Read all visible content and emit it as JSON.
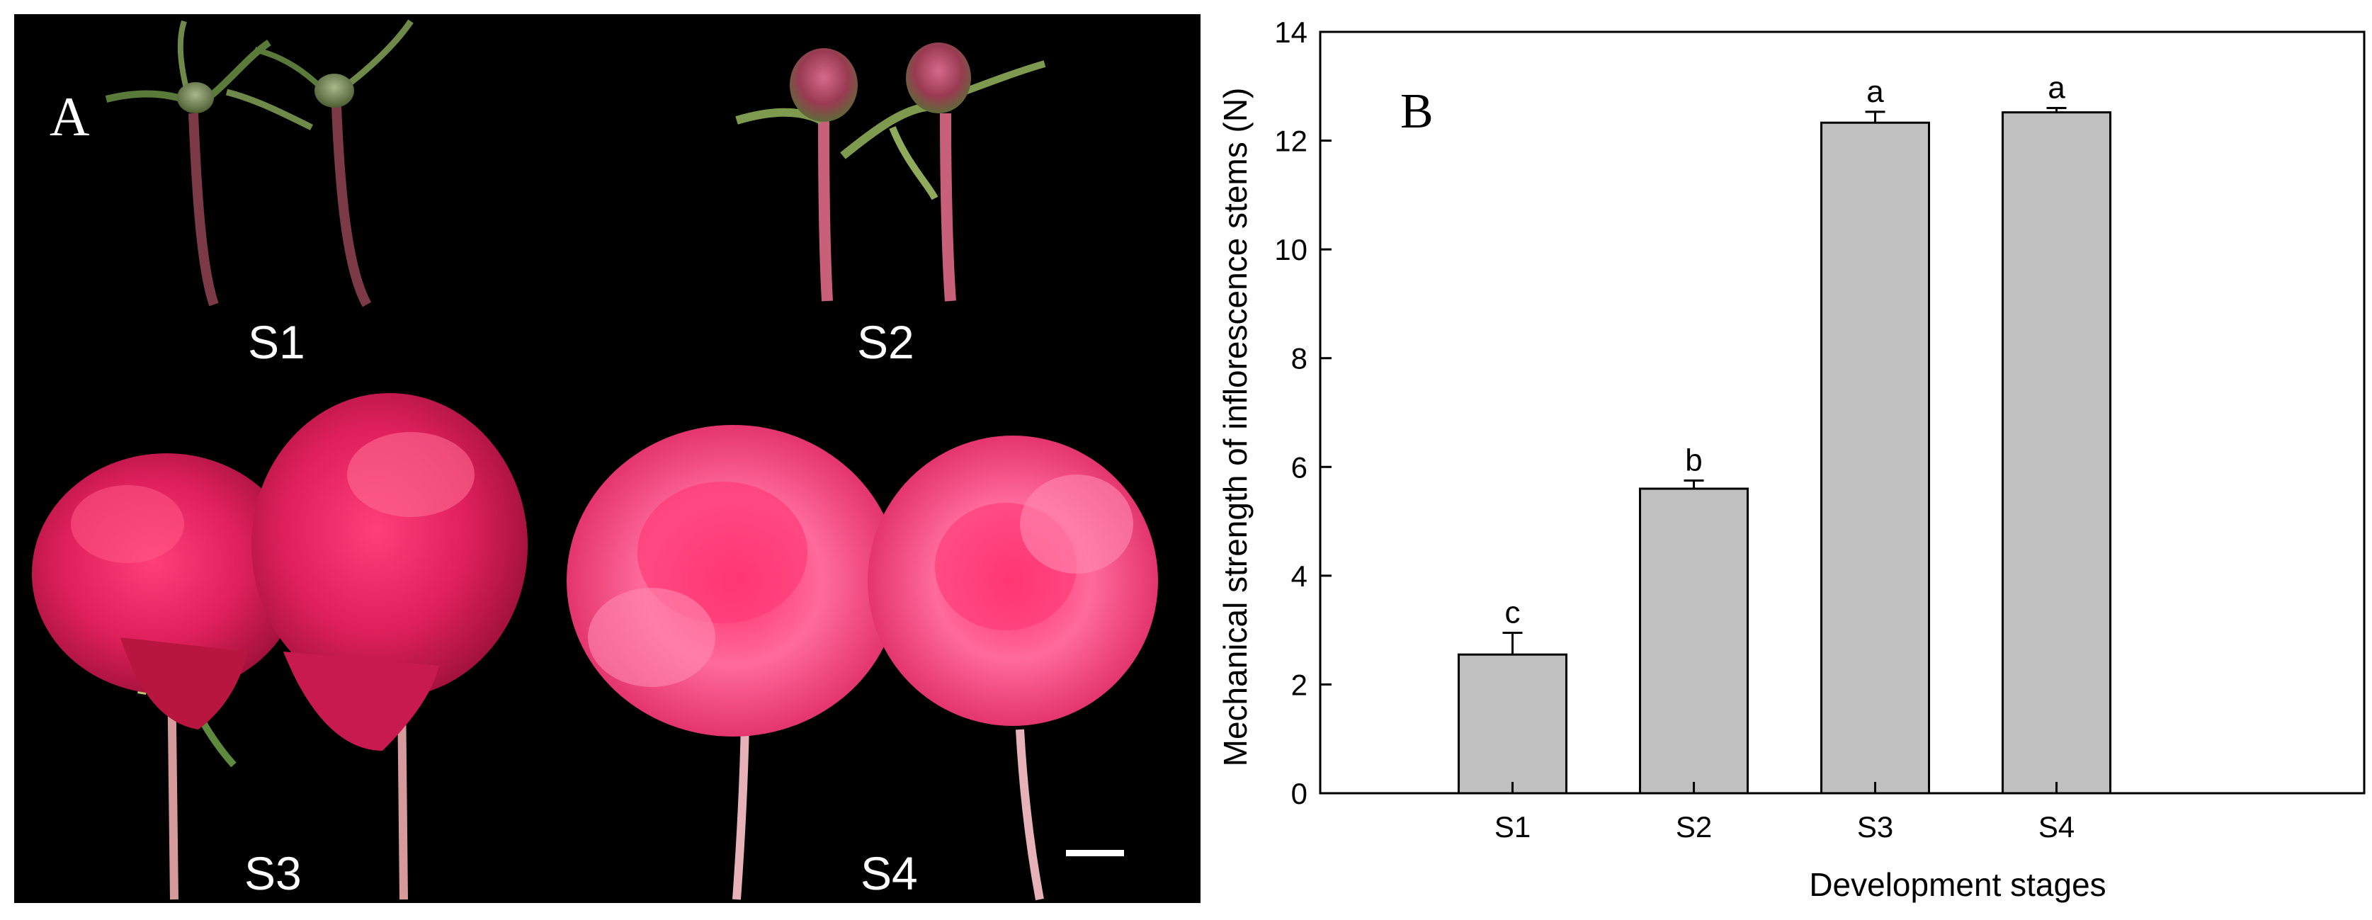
{
  "panel_a": {
    "letter": "A",
    "stages": [
      "S1",
      "S2",
      "S3",
      "S4"
    ]
  },
  "chart_data": {
    "type": "bar",
    "panel_letter": "B",
    "categories": [
      "S1",
      "S2",
      "S3",
      "S4"
    ],
    "values": [
      2.55,
      5.6,
      12.33,
      12.52
    ],
    "errors": [
      0.4,
      0.15,
      0.2,
      0.08
    ],
    "significance": [
      "c",
      "b",
      "a",
      "a"
    ],
    "xlabel": "Development stages",
    "ylabel": "Mechanical strength of inflorescence stems (N)",
    "ylim": [
      0,
      14
    ],
    "yticks": [
      0,
      2,
      4,
      6,
      8,
      10,
      12,
      14
    ],
    "bar_color": "#c0c0c0",
    "grid": false,
    "legend": "none"
  }
}
